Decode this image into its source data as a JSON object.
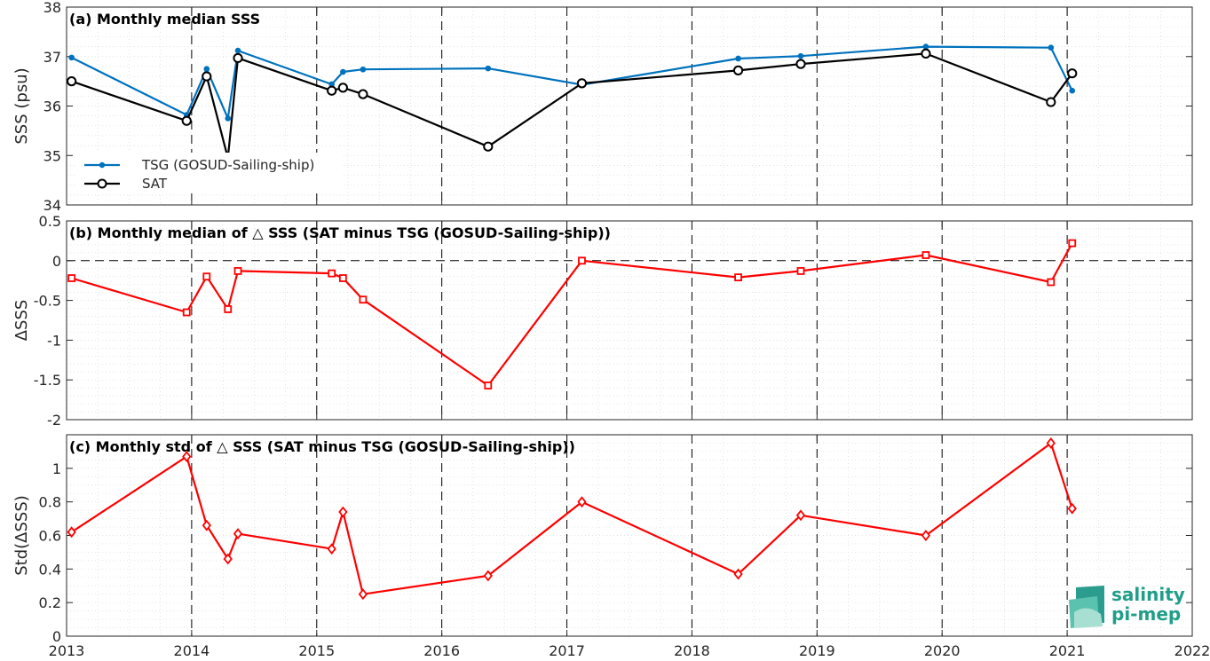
{
  "chart_data": [
    {
      "type": "line",
      "title": "(a) Monthly median SSS",
      "ylabel": "SSS (psu)",
      "xlim": [
        2013,
        2022
      ],
      "ylim": [
        34,
        38
      ],
      "yticks": [
        "34",
        "35",
        "36",
        "37",
        "38"
      ],
      "grid": "minor dotted",
      "legend_position": "bottom-left",
      "x": [
        2013.04,
        2013.96,
        2014.12,
        2014.29,
        2014.37,
        2015.12,
        2015.21,
        2015.37,
        2016.37,
        2017.12,
        2018.37,
        2018.87,
        2019.87,
        2020.87,
        2021.04
      ],
      "series": [
        {
          "name": "TSG (GOSUD-Sailing-ship)",
          "color": "#0072bd",
          "marker": "dot",
          "values": [
            36.98,
            35.82,
            36.75,
            35.75,
            37.12,
            36.44,
            36.69,
            36.74,
            36.76,
            36.43,
            36.96,
            37.01,
            37.2,
            37.18,
            36.31
          ]
        },
        {
          "name": "SAT",
          "color": "#000000",
          "marker": "circle",
          "values": [
            36.5,
            35.7,
            36.6,
            34.95,
            36.97,
            36.31,
            36.37,
            36.24,
            35.18,
            36.46,
            36.72,
            36.85,
            37.06,
            36.08,
            36.66
          ]
        }
      ]
    },
    {
      "type": "line",
      "title": "(b) Monthly median of △ SSS (SAT minus TSG (GOSUD-Sailing-ship))",
      "ylabel": "ΔSSS",
      "xlim": [
        2013,
        2022
      ],
      "ylim": [
        -2,
        0.5
      ],
      "yticks": [
        "-2",
        "-1.5",
        "-1",
        "-0.5",
        "0",
        "0.5"
      ],
      "reference_line": 0,
      "x": [
        2013.04,
        2013.96,
        2014.12,
        2014.29,
        2014.37,
        2015.12,
        2015.21,
        2015.37,
        2016.37,
        2017.12,
        2018.37,
        2018.87,
        2019.87,
        2020.87,
        2021.04
      ],
      "series": [
        {
          "color": "#ff0000",
          "marker": "square",
          "values": [
            -0.22,
            -0.65,
            -0.2,
            -0.61,
            -0.13,
            -0.16,
            -0.22,
            -0.49,
            -1.57,
            0.0,
            -0.21,
            -0.13,
            0.07,
            -0.27,
            0.22
          ]
        }
      ]
    },
    {
      "type": "line",
      "title": "(c) Monthly std of △ SSS (SAT minus TSG (GOSUD-Sailing-ship))",
      "ylabel": "Std(ΔSSS)",
      "xlim": [
        2013,
        2022
      ],
      "ylim": [
        0,
        1.2
      ],
      "yticks": [
        "0",
        "0.2",
        "0.4",
        "0.6",
        "0.8",
        "1"
      ],
      "xticks": [
        "2013",
        "2014",
        "2015",
        "2016",
        "2017",
        "2018",
        "2019",
        "2020",
        "2021",
        "2022"
      ],
      "x": [
        2013.04,
        2013.96,
        2014.12,
        2014.29,
        2014.37,
        2015.12,
        2015.21,
        2015.37,
        2016.37,
        2017.12,
        2018.37,
        2018.87,
        2019.87,
        2020.87,
        2021.04
      ],
      "series": [
        {
          "color": "#ff0000",
          "marker": "diamond",
          "values": [
            0.62,
            1.07,
            0.66,
            0.46,
            0.61,
            0.52,
            0.74,
            0.25,
            0.36,
            0.8,
            0.37,
            0.72,
            0.6,
            1.15,
            0.76
          ]
        }
      ]
    }
  ],
  "logo": {
    "line1": "salinity",
    "line2": "pi-mep",
    "color": "#1f9e89"
  }
}
